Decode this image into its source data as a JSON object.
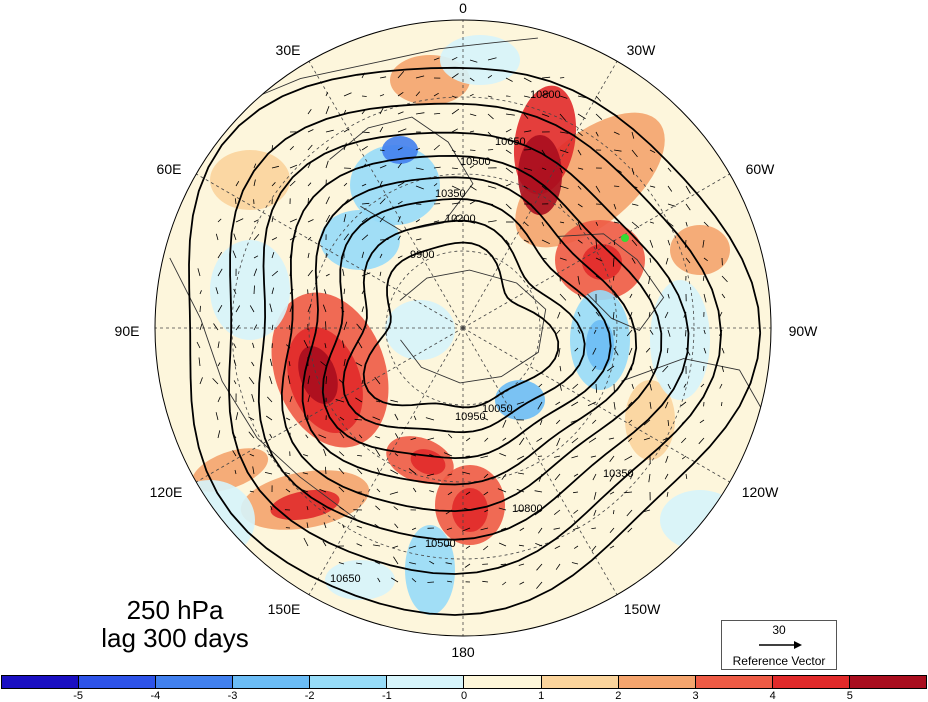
{
  "title_line1": "250 hPa",
  "title_line2": "lag 300 days",
  "longitude_labels": [
    "0",
    "30W",
    "60W",
    "90W",
    "120W",
    "150W",
    "180",
    "150E",
    "120E",
    "90E",
    "60E",
    "30E"
  ],
  "contour_levels": [
    9900,
    10050,
    10200,
    10350,
    10500,
    10650,
    10800,
    10950
  ],
  "contour_labels": [
    "10800",
    "10650",
    "10500",
    "10350",
    "10200",
    "9900",
    "10050",
    "10950"
  ],
  "reference_vector": {
    "value": "30",
    "caption": "Reference Vector"
  },
  "colorbar": {
    "colors": [
      "#1a0fc2",
      "#2d53e8",
      "#4180ee",
      "#6bbcf5",
      "#97dcf8",
      "#d6f4fb",
      "#fdf6d9",
      "#fbd49c",
      "#f4a46d",
      "#ee5b45",
      "#e12a2a",
      "#a90d1e"
    ],
    "ticks": [
      "-5",
      "-4",
      "-3",
      "-2",
      "-1",
      "0",
      "1",
      "2",
      "3",
      "4",
      "5"
    ]
  },
  "marker_color": "#33dd33"
}
